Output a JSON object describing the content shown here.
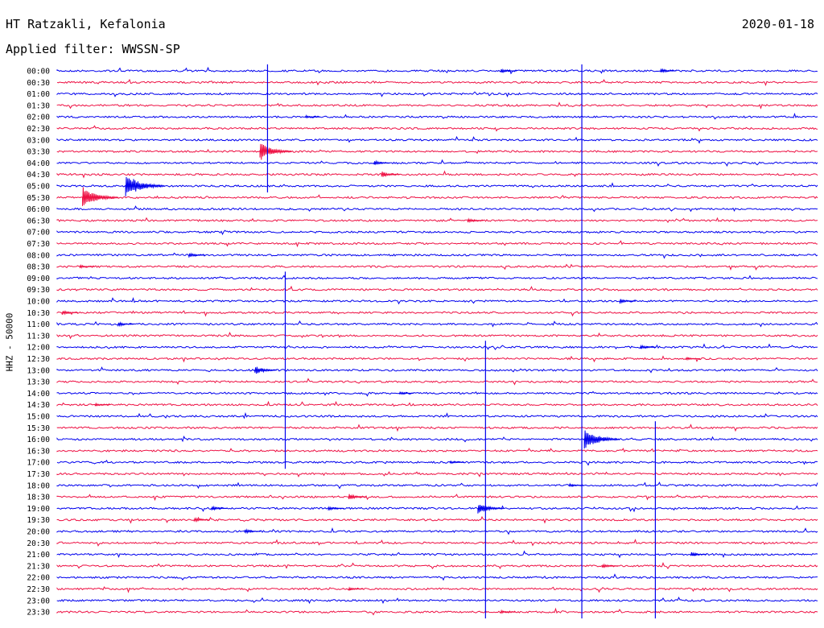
{
  "header": {
    "station": "HT Ratzakli, Kefalonia",
    "date": "2020-01-18",
    "filter": "Applied filter: WWSSN-SP",
    "channel": "HHZ - 50000"
  },
  "chart_data": {
    "type": "helicorder",
    "colors": [
      "#0000ee",
      "#ee1144"
    ],
    "ylabel": "HHZ - 50000",
    "row_labels": [
      "00:00",
      "00:30",
      "01:00",
      "01:30",
      "02:00",
      "02:30",
      "03:00",
      "03:30",
      "04:00",
      "04:30",
      "05:00",
      "05:30",
      "06:00",
      "06:30",
      "07:00",
      "07:30",
      "08:00",
      "08:30",
      "09:00",
      "09:30",
      "10:00",
      "10:30",
      "11:00",
      "11:30",
      "12:00",
      "12:30",
      "13:00",
      "13:30",
      "14:00",
      "14:30",
      "15:00",
      "15:30",
      "16:00",
      "16:30",
      "17:00",
      "17:30",
      "18:00",
      "18:30",
      "19:00",
      "19:30",
      "20:00",
      "20:30",
      "21:00",
      "21:30",
      "22:00",
      "22:30",
      "23:00",
      "23:30"
    ],
    "x_range_minutes": [
      0,
      30
    ],
    "events": [
      {
        "row": 0,
        "minute": 17.5,
        "amplitude": 3
      },
      {
        "row": 0,
        "minute": 23.8,
        "amplitude": 3
      },
      {
        "row": 4,
        "minute": 9.8,
        "amplitude": 2
      },
      {
        "row": 7,
        "minute": 8.0,
        "amplitude": 12
      },
      {
        "row": 8,
        "minute": 12.5,
        "amplitude": 3
      },
      {
        "row": 9,
        "minute": 12.8,
        "amplitude": 4
      },
      {
        "row": 10,
        "minute": 2.7,
        "amplitude": 16
      },
      {
        "row": 11,
        "minute": 1.0,
        "amplitude": 14
      },
      {
        "row": 13,
        "minute": 16.2,
        "amplitude": 3
      },
      {
        "row": 16,
        "minute": 5.2,
        "amplitude": 3
      },
      {
        "row": 17,
        "minute": 0.9,
        "amplitude": 2
      },
      {
        "row": 20,
        "minute": 22.2,
        "amplitude": 3
      },
      {
        "row": 21,
        "minute": 0.2,
        "amplitude": 3
      },
      {
        "row": 22,
        "minute": 2.4,
        "amplitude": 3
      },
      {
        "row": 24,
        "minute": 23.0,
        "amplitude": 3
      },
      {
        "row": 25,
        "minute": 24.8,
        "amplitude": 2
      },
      {
        "row": 26,
        "minute": 7.8,
        "amplitude": 6
      },
      {
        "row": 28,
        "minute": 13.5,
        "amplitude": 2
      },
      {
        "row": 29,
        "minute": 1.5,
        "amplitude": 2
      },
      {
        "row": 32,
        "minute": 20.8,
        "amplitude": 14
      },
      {
        "row": 34,
        "minute": 15.5,
        "amplitude": 2
      },
      {
        "row": 36,
        "minute": 20.2,
        "amplitude": 2
      },
      {
        "row": 37,
        "minute": 11.5,
        "amplitude": 4
      },
      {
        "row": 38,
        "minute": 6.1,
        "amplitude": 3
      },
      {
        "row": 38,
        "minute": 10.7,
        "amplitude": 3
      },
      {
        "row": 38,
        "minute": 16.6,
        "amplitude": 8
      },
      {
        "row": 39,
        "minute": 5.4,
        "amplitude": 3
      },
      {
        "row": 40,
        "minute": 7.4,
        "amplitude": 3
      },
      {
        "row": 42,
        "minute": 25.0,
        "amplitude": 3
      },
      {
        "row": 43,
        "minute": 21.5,
        "amplitude": 3
      },
      {
        "row": 45,
        "minute": 11.5,
        "amplitude": 2
      },
      {
        "row": 47,
        "minute": 17.5,
        "amplitude": 2
      }
    ],
    "long_spikes": [
      {
        "minute": 8.3,
        "from_row": 0,
        "to_row": 10
      },
      {
        "minute": 20.7,
        "from_row": 0,
        "to_row": 47
      },
      {
        "minute": 9.0,
        "from_row": 18,
        "to_row": 34
      },
      {
        "minute": 16.9,
        "from_row": 24,
        "to_row": 47
      },
      {
        "minute": 23.6,
        "from_row": 31,
        "to_row": 47
      }
    ]
  }
}
